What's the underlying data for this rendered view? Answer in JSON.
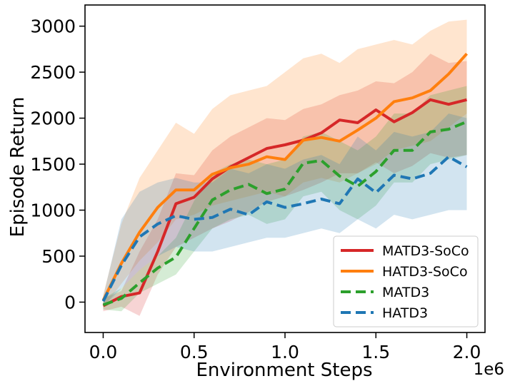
{
  "chart_data": {
    "type": "line",
    "title": "",
    "xlabel": "Environment Steps",
    "ylabel": "Episode Return",
    "x_offset_label": "1e6",
    "xlim": [
      -0.1,
      2.1
    ],
    "ylim": [
      -330,
      3230
    ],
    "xticks": [
      0.0,
      0.5,
      1.0,
      1.5,
      2.0
    ],
    "xtick_labels": [
      "0.0",
      "0.5",
      "1.0",
      "1.5",
      "2.0"
    ],
    "yticks": [
      0,
      500,
      1000,
      1500,
      2000,
      2500,
      3000
    ],
    "ytick_labels": [
      "0",
      "500",
      "1000",
      "1500",
      "2000",
      "2500",
      "3000"
    ],
    "grid": false,
    "legend_position": "lower-right",
    "x": [
      0.0,
      0.1,
      0.2,
      0.3,
      0.4,
      0.5,
      0.6,
      0.7,
      0.8,
      0.9,
      1.0,
      1.1,
      1.2,
      1.3,
      1.4,
      1.5,
      1.6,
      1.7,
      1.8,
      1.9,
      2.0
    ],
    "series": [
      {
        "name": "MATD3-SoCo",
        "color": "#d62728",
        "dash": "solid",
        "values": [
          -40,
          60,
          100,
          550,
          1070,
          1140,
          1340,
          1470,
          1570,
          1670,
          1710,
          1760,
          1840,
          1980,
          1950,
          2090,
          1960,
          2060,
          2200,
          2150,
          2200
        ],
        "lower": [
          -100,
          -50,
          -150,
          300,
          600,
          700,
          800,
          880,
          980,
          1090,
          1150,
          1220,
          1300,
          1400,
          1400,
          1520,
          1400,
          1480,
          1620,
          1570,
          1600
        ],
        "upper": [
          40,
          120,
          550,
          900,
          1400,
          1380,
          1650,
          1800,
          1900,
          2000,
          1980,
          2100,
          2150,
          2250,
          2300,
          2400,
          2380,
          2500,
          2700,
          2600,
          2620
        ]
      },
      {
        "name": "HATD3-SoCo",
        "color": "#ff7f0e",
        "dash": "solid",
        "values": [
          20,
          420,
          760,
          1030,
          1220,
          1220,
          1390,
          1460,
          1500,
          1580,
          1550,
          1760,
          1790,
          1750,
          1870,
          2000,
          2180,
          2220,
          2300,
          2480,
          2700
        ],
        "lower": [
          -60,
          200,
          450,
          650,
          900,
          950,
          1050,
          1100,
          1150,
          1200,
          1150,
          1300,
          1350,
          1300,
          1400,
          1500,
          1650,
          1700,
          1750,
          1900,
          2050
        ],
        "upper": [
          80,
          850,
          1350,
          1650,
          1950,
          1830,
          2100,
          2250,
          2300,
          2350,
          2500,
          2650,
          2700,
          2600,
          2750,
          2800,
          2850,
          2800,
          2950,
          3050,
          3070
        ]
      },
      {
        "name": "MATD3",
        "color": "#2ca02c",
        "dash": "dashed",
        "values": [
          -30,
          40,
          210,
          370,
          490,
          800,
          1110,
          1220,
          1280,
          1180,
          1230,
          1510,
          1540,
          1370,
          1260,
          1420,
          1650,
          1650,
          1850,
          1880,
          1960
        ],
        "lower": [
          -80,
          -100,
          100,
          200,
          300,
          550,
          800,
          900,
          950,
          850,
          900,
          1150,
          1200,
          1000,
          900,
          1050,
          1300,
          1300,
          1500,
          1550,
          1600
        ],
        "upper": [
          40,
          150,
          350,
          500,
          700,
          1100,
          1400,
          1500,
          1550,
          1500,
          1550,
          1800,
          1850,
          1750,
          1650,
          1800,
          2050,
          2050,
          2250,
          2300,
          2350
        ]
      },
      {
        "name": "HATD3",
        "color": "#1f77b4",
        "dash": "dashed",
        "values": [
          10,
          400,
          710,
          850,
          940,
          900,
          920,
          1010,
          950,
          1090,
          1030,
          1070,
          1120,
          1070,
          1340,
          1190,
          1380,
          1340,
          1400,
          1580,
          1470
        ],
        "lower": [
          -50,
          150,
          350,
          500,
          600,
          550,
          550,
          600,
          650,
          700,
          700,
          750,
          800,
          750,
          900,
          800,
          950,
          900,
          950,
          1000,
          1000
        ],
        "upper": [
          60,
          900,
          1200,
          1300,
          1350,
          1300,
          1300,
          1450,
          1400,
          1500,
          1450,
          1550,
          1600,
          1500,
          1800,
          1650,
          1850,
          1800,
          1850,
          2050,
          2000
        ]
      }
    ]
  }
}
